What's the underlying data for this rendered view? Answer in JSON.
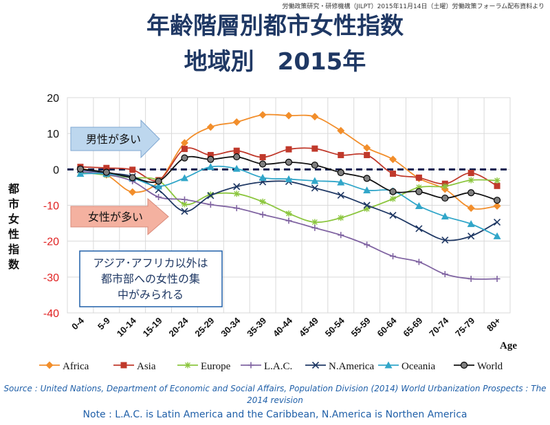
{
  "credit": "労働政策研究・研修機構（JILPT）2015年11月14日（土曜）労働政策フォーラム配布資料より",
  "title_line1": "年齢階層別都市女性指数",
  "title_line2": "地域別　2015年",
  "source": "Source : United Nations, Department of Economic and Social Affairs, Population Division (2014) World Urbanization Prospects : The 2014 revision",
  "note": "Note : L.A.C. is Latin America and the Caribbean, N.America is Northen America",
  "chart_data": {
    "type": "line",
    "ylabel": "都市女性指数",
    "xlabel": "Age",
    "ylim": [
      -40,
      20
    ],
    "yticks": [
      20,
      10,
      0,
      -10,
      -20,
      -30,
      -40
    ],
    "grid": true,
    "legend": "bottom",
    "categories": [
      "0-4",
      "5-9",
      "10-14",
      "15-19",
      "20-24",
      "25-29",
      "30-34",
      "35-39",
      "40-44",
      "45-49",
      "50-54",
      "55-59",
      "60-64",
      "65-69",
      "70-74",
      "75-79",
      "80+"
    ],
    "annotations": {
      "male_more": "男性が多い",
      "female_more": "女性が多い",
      "box": [
        "アジア･アフリカ以外は",
        "都市部への女性の集",
        "中がみられる"
      ]
    },
    "series": [
      {
        "name": "Africa",
        "color": "#f28e2b",
        "marker": "diamond",
        "values": [
          0.3,
          -1.5,
          -6.3,
          -3.5,
          7.4,
          11.8,
          13.2,
          15.2,
          15.0,
          14.7,
          10.8,
          6.0,
          2.8,
          -2.5,
          -5.5,
          -10.8,
          -10.2
        ]
      },
      {
        "name": "Asia",
        "color": "#c0392b",
        "marker": "square",
        "values": [
          0.7,
          0.4,
          -0.1,
          -3.0,
          5.7,
          4.0,
          5.2,
          3.4,
          5.6,
          5.8,
          4.0,
          4.0,
          -1.2,
          -2.3,
          -4.0,
          -1.0,
          -4.6
        ]
      },
      {
        "name": "Europe",
        "color": "#8cc63f",
        "marker": "star",
        "values": [
          -0.7,
          -1.6,
          -2.3,
          -3.1,
          -9.7,
          -7.0,
          -6.8,
          -9.0,
          -12.3,
          -14.7,
          -13.5,
          -11.0,
          -8.2,
          -5.0,
          -4.7,
          -3.0,
          -3.1
        ]
      },
      {
        "name": "L.A.C.",
        "color": "#8064a2",
        "marker": "plus",
        "values": [
          -0.6,
          -1.4,
          -3.3,
          -7.7,
          -8.4,
          -9.8,
          -10.8,
          -12.6,
          -14.3,
          -16.3,
          -18.3,
          -21.0,
          -24.2,
          -25.8,
          -29.2,
          -30.5,
          -30.5
        ]
      },
      {
        "name": "N.America",
        "color": "#1f3864",
        "marker": "x",
        "values": [
          -0.1,
          -1.0,
          -2.0,
          -5.7,
          -11.7,
          -7.3,
          -4.8,
          -3.5,
          -3.4,
          -5.2,
          -7.2,
          -10.0,
          -12.8,
          -16.5,
          -19.7,
          -18.6,
          -14.7
        ]
      },
      {
        "name": "Oceania",
        "color": "#31a6c9",
        "marker": "triangle",
        "values": [
          -1.2,
          -1.2,
          -2.4,
          -4.7,
          -2.4,
          0.7,
          0.2,
          -2.3,
          -2.7,
          -3.2,
          -3.6,
          -5.8,
          -6.0,
          -10.2,
          -13.1,
          -15.2,
          -18.6
        ]
      },
      {
        "name": "World",
        "color": "#1a1a1a",
        "marker": "circle",
        "values": [
          0.1,
          -0.8,
          -2.3,
          -3.3,
          3.2,
          2.8,
          3.5,
          1.5,
          2.0,
          1.2,
          -0.9,
          -2.5,
          -6.2,
          -6.2,
          -8.0,
          -6.5,
          -8.6
        ]
      }
    ]
  }
}
